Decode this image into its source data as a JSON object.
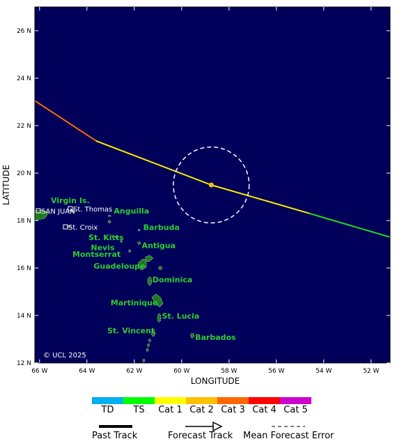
{
  "map": {
    "lon_range": [
      -66.2,
      -51.2
    ],
    "lat_range": [
      12,
      27
    ],
    "ocean_color": "#00005a",
    "land_color": "#1f7a1f",
    "label_color": "#2ecc2e",
    "lon_ticks": [
      {
        "value": -66,
        "label": "66 W"
      },
      {
        "value": -64,
        "label": "64 W"
      },
      {
        "value": -62,
        "label": "62 W"
      },
      {
        "value": -60,
        "label": "60 W"
      },
      {
        "value": -58,
        "label": "58 W"
      },
      {
        "value": -56,
        "label": "56 W"
      },
      {
        "value": -54,
        "label": "54 W"
      },
      {
        "value": -52,
        "label": "52 W"
      }
    ],
    "lat_ticks": [
      {
        "value": 12,
        "label": "12 N"
      },
      {
        "value": 14,
        "label": "14 N"
      },
      {
        "value": 16,
        "label": "16 N"
      },
      {
        "value": 18,
        "label": "18 N"
      },
      {
        "value": 20,
        "label": "20 N"
      },
      {
        "value": 22,
        "label": "22 N"
      },
      {
        "value": 24,
        "label": "24 N"
      },
      {
        "value": 26,
        "label": "26 N"
      }
    ],
    "xlabel": "LONGITUDE",
    "ylabel": "LATITUDE",
    "copyright": "© UCL 2025"
  },
  "islands": [
    {
      "name": "Virgin Is.",
      "lon": -64.7,
      "lat": 18.35
    },
    {
      "name": "Anguilla",
      "lon": -63.1,
      "lat": 18.2
    },
    {
      "name": "Barbuda",
      "lon": -61.8,
      "lat": 17.6
    },
    {
      "name": "St. Kitts",
      "lon": -62.7,
      "lat": 17.3
    },
    {
      "name": "Nevis",
      "lon": -62.6,
      "lat": 17.1
    },
    {
      "name": "Antigua",
      "lon": -61.8,
      "lat": 17.05
    },
    {
      "name": "Montserrat",
      "lon": -62.2,
      "lat": 16.7
    },
    {
      "name": "Guadeloupe",
      "lon": -61.6,
      "lat": 16.2
    },
    {
      "name": "Dominica",
      "lon": -61.35,
      "lat": 15.4
    },
    {
      "name": "Martinique",
      "lon": -61.0,
      "lat": 14.6
    },
    {
      "name": "St. Lucia",
      "lon": -60.95,
      "lat": 13.9
    },
    {
      "name": "St. Vincent",
      "lon": -61.2,
      "lat": 13.25
    },
    {
      "name": "Barbados",
      "lon": -59.55,
      "lat": 13.15
    }
  ],
  "cities": [
    {
      "name": "SAN JUAN",
      "lon": -66.1,
      "lat": 18.45
    },
    {
      "name": "St. Thomas",
      "lon": -64.9,
      "lat": 18.35
    },
    {
      "name": "St. Croix",
      "lon": -64.8,
      "lat": 17.75
    }
  ],
  "storm": {
    "track": [
      {
        "lon": -66.2,
        "lat": 23.05,
        "category": "Cat 2"
      },
      {
        "lon": -63.6,
        "lat": 21.35,
        "category": "Cat 1"
      },
      {
        "lon": -58.75,
        "lat": 19.5,
        "category": "Cat 1"
      },
      {
        "lon": -54.6,
        "lat": 18.3,
        "category": "TS"
      },
      {
        "lon": -51.2,
        "lat": 17.3,
        "category": "TS"
      }
    ],
    "current_position": {
      "lon": -58.75,
      "lat": 19.5
    },
    "forecast_error_radius_deg": 1.6,
    "segment_colors": [
      "#ff6a00",
      "#ffee00",
      "#ffee00",
      "#22dd22"
    ]
  },
  "legend": {
    "categories": [
      {
        "label": "TD",
        "color": "#00b0f0"
      },
      {
        "label": "TS",
        "color": "#00ff00"
      },
      {
        "label": "Cat 1",
        "color": "#ffff00"
      },
      {
        "label": "Cat 2",
        "color": "#ffc000"
      },
      {
        "label": "Cat 3",
        "color": "#ff6600"
      },
      {
        "label": "Cat 4",
        "color": "#ff0000"
      },
      {
        "label": "Cat 5",
        "color": "#cc00cc"
      }
    ],
    "past_track": "Past Track",
    "forecast_track": "Forecast Track",
    "mean_forecast_error": "Mean Forecast Error"
  }
}
